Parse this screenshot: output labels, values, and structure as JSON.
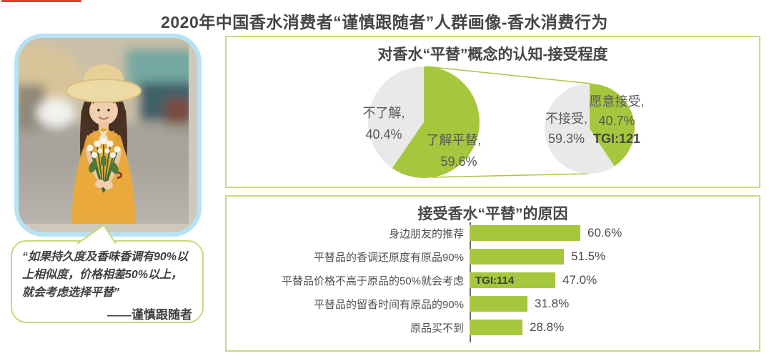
{
  "page": {
    "title": "2020年中国香水消费者“谨慎跟随者”人群画像-香水消费行为"
  },
  "colors": {
    "green": "#a6c73d",
    "pie_gray": "#e9e9e9",
    "box_border": "#c9dc7d",
    "photo_border": "#b5e3f5",
    "quote_border": "#c5da79",
    "red": "#e8392e"
  },
  "persona": {
    "photo_alt": "woman in straw hat and yellow dress holding white flowers on a blurred street",
    "quote_text": "“如果持久度及香味香调有90%以上相似度，价格相差50%以上，就会考虑选择平替”",
    "quote_attribution": "——谨慎跟随者"
  },
  "awareness_panel": {
    "title": "对香水“平替”概念的认知-接受程度",
    "pie1": {
      "unknown_label": "不了解,",
      "unknown_value": "40.4%",
      "known_label": "了解平替,",
      "known_value": "59.6%"
    },
    "pie2": {
      "reject_label": "不接受,",
      "reject_value": "59.3%",
      "accept_label": "愿意接受,",
      "accept_value": "40.7%",
      "accept_tgi": "TGI:121"
    }
  },
  "reasons_panel": {
    "title": "接受香水“平替”的原因"
  },
  "chart_data": [
    {
      "type": "pie",
      "title": "对香水“平替”概念的认知",
      "slices": [
        {
          "label": "了解平替",
          "value": 59.6
        },
        {
          "label": "不了解",
          "value": 40.4
        }
      ],
      "colors": [
        "#a6c73d",
        "#e9e9e9"
      ],
      "start_angle_deg": 0,
      "direction": "clockwise",
      "labels_on_chart": true
    },
    {
      "type": "pie",
      "title": "对香水“平替”的接受程度",
      "slices": [
        {
          "label": "愿意接受",
          "value": 40.7,
          "tgi": "TGI:121"
        },
        {
          "label": "不接受",
          "value": 59.3
        }
      ],
      "colors": [
        "#a6c73d",
        "#e9e9e9"
      ],
      "start_angle_deg": 0,
      "direction": "clockwise",
      "labels_on_chart": true
    },
    {
      "type": "bar",
      "title": "接受香水“平替”的原因",
      "orientation": "horizontal",
      "categories": [
        "身边朋友的推荐",
        "平替品的香调还原度有原品90%",
        "平替品价格不高于原品的50%就会考虑",
        "平替品的留香时间有原品的90%",
        "原品买不到"
      ],
      "values": [
        60.6,
        51.5,
        47.0,
        31.8,
        28.8
      ],
      "value_labels": [
        "60.6%",
        "51.5%",
        "47.0%",
        "31.8%",
        "28.8%"
      ],
      "unit": "%",
      "xlim": [
        0,
        65
      ],
      "annotations": [
        {
          "category_index": 2,
          "text": "TGI:114",
          "position": "inside-left"
        }
      ],
      "legend": false,
      "grid": false
    }
  ]
}
